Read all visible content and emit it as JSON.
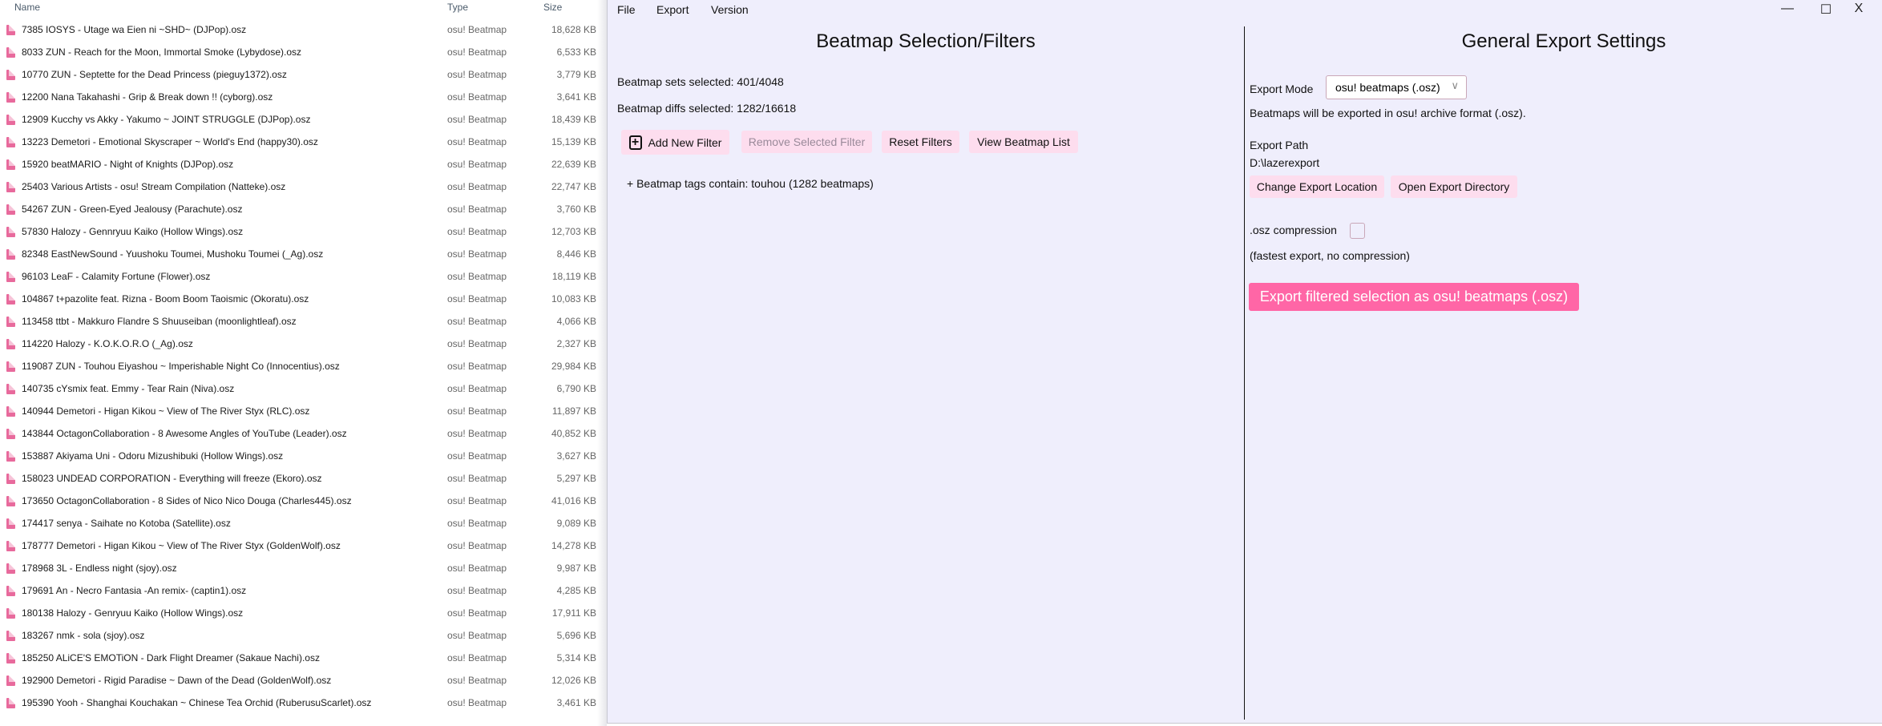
{
  "explorer": {
    "columns": {
      "name": "Name",
      "type": "Type",
      "size": "Size"
    },
    "rows": [
      {
        "name": "7385 IOSYS - Utage wa Eien ni ~SHD~ (DJPop).osz",
        "type": "osu! Beatmap",
        "size": "18,628 KB"
      },
      {
        "name": "8033 ZUN - Reach for the Moon, Immortal Smoke (Lybydose).osz",
        "type": "osu! Beatmap",
        "size": "6,533 KB"
      },
      {
        "name": "10770 ZUN - Septette for the Dead Princess (pieguy1372).osz",
        "type": "osu! Beatmap",
        "size": "3,779 KB"
      },
      {
        "name": "12200 Nana Takahashi - Grip & Break down !! (cyborg).osz",
        "type": "osu! Beatmap",
        "size": "3,641 KB"
      },
      {
        "name": "12909 Kucchy vs Akky - Yakumo ~ JOINT STRUGGLE (DJPop).osz",
        "type": "osu! Beatmap",
        "size": "18,439 KB"
      },
      {
        "name": "13223 Demetori - Emotional Skyscraper ~ World's End (happy30).osz",
        "type": "osu! Beatmap",
        "size": "15,139 KB"
      },
      {
        "name": "15920 beatMARIO - Night of Knights (DJPop).osz",
        "type": "osu! Beatmap",
        "size": "22,639 KB"
      },
      {
        "name": "25403 Various Artists - osu! Stream Compilation (Natteke).osz",
        "type": "osu! Beatmap",
        "size": "22,747 KB"
      },
      {
        "name": "54267 ZUN - Green-Eyed Jealousy (Parachute).osz",
        "type": "osu! Beatmap",
        "size": "3,760 KB"
      },
      {
        "name": "57830 Halozy - Gennryuu Kaiko (Hollow Wings).osz",
        "type": "osu! Beatmap",
        "size": "12,703 KB"
      },
      {
        "name": "82348 EastNewSound - Yuushoku Toumei, Mushoku Toumei (_Ag).osz",
        "type": "osu! Beatmap",
        "size": "8,446 KB"
      },
      {
        "name": "96103 LeaF - Calamity Fortune (Flower).osz",
        "type": "osu! Beatmap",
        "size": "18,119 KB"
      },
      {
        "name": "104867 t+pazolite feat. Rizna - Boom Boom Taoismic (Okoratu).osz",
        "type": "osu! Beatmap",
        "size": "10,083 KB"
      },
      {
        "name": "113458 ttbt - Makkuro Flandre S Shuuseiban (moonlightleaf).osz",
        "type": "osu! Beatmap",
        "size": "4,066 KB"
      },
      {
        "name": "114220 Halozy - K.O.K.O.R.O (_Ag).osz",
        "type": "osu! Beatmap",
        "size": "2,327 KB"
      },
      {
        "name": "119087 ZUN - Touhou Eiyashou ~  Imperishable Night Co (Innocentius).osz",
        "type": "osu! Beatmap",
        "size": "29,984 KB"
      },
      {
        "name": "140735 cYsmix feat. Emmy - Tear Rain (Niva).osz",
        "type": "osu! Beatmap",
        "size": "6,790 KB"
      },
      {
        "name": "140944 Demetori - Higan Kikou ~ View of The River Styx (RLC).osz",
        "type": "osu! Beatmap",
        "size": "11,897 KB"
      },
      {
        "name": "143844 OctagonCollaboration - 8 Awesome Angles of YouTube (Leader).osz",
        "type": "osu! Beatmap",
        "size": "40,852 KB"
      },
      {
        "name": "153887 Akiyama Uni - Odoru Mizushibuki (Hollow Wings).osz",
        "type": "osu! Beatmap",
        "size": "3,627 KB"
      },
      {
        "name": "158023 UNDEAD CORPORATION - Everything will freeze (Ekoro).osz",
        "type": "osu! Beatmap",
        "size": "5,297 KB"
      },
      {
        "name": "173650 OctagonCollaboration - 8 Sides of Nico Nico Douga (Charles445).osz",
        "type": "osu! Beatmap",
        "size": "41,016 KB"
      },
      {
        "name": "174417 senya - Saihate no Kotoba (Satellite).osz",
        "type": "osu! Beatmap",
        "size": "9,089 KB"
      },
      {
        "name": "178777 Demetori - Higan Kikou ~ View of The River Styx (GoldenWolf).osz",
        "type": "osu! Beatmap",
        "size": "14,278 KB"
      },
      {
        "name": "178968 3L - Endless night (sjoy).osz",
        "type": "osu! Beatmap",
        "size": "9,987 KB"
      },
      {
        "name": "179691 An - Necro Fantasia -An remix- (captin1).osz",
        "type": "osu! Beatmap",
        "size": "4,285 KB"
      },
      {
        "name": "180138 Halozy - Genryuu Kaiko (Hollow Wings).osz",
        "type": "osu! Beatmap",
        "size": "17,911 KB"
      },
      {
        "name": "183267 nmk - sola (sjoy).osz",
        "type": "osu! Beatmap",
        "size": "5,696 KB"
      },
      {
        "name": "185250 ALiCE'S EMOTiON - Dark Flight Dreamer (Sakaue Nachi).osz",
        "type": "osu! Beatmap",
        "size": "5,314 KB"
      },
      {
        "name": "192900 Demetori - Rigid Paradise ~ Dawn of the Dead (GoldenWolf).osz",
        "type": "osu! Beatmap",
        "size": "12,026 KB"
      },
      {
        "name": "195390 Yooh - Shanghai Kouchakan ~ Chinese Tea Orchid  (RuberusuScarlet).osz",
        "type": "osu! Beatmap",
        "size": "3,461 KB"
      }
    ]
  },
  "app": {
    "menu": [
      "File",
      "Export",
      "Version"
    ],
    "window_controls": {
      "minimize": "—",
      "maximize": "☐",
      "close": "X"
    },
    "left": {
      "title": "Beatmap Selection/Filters",
      "sets_selected": "Beatmap sets selected: 401/4048",
      "diffs_selected": "Beatmap diffs selected: 1282/16618",
      "buttons": {
        "add": "Add New Filter",
        "remove": "Remove Selected Filter",
        "reset": "Reset Filters",
        "view": "View Beatmap List"
      },
      "filters": [
        "+ Beatmap tags contain: touhou (1282 beatmaps)"
      ]
    },
    "right": {
      "title": "General Export Settings",
      "export_mode_label": "Export Mode",
      "export_mode_value": "osu! beatmaps (.osz)",
      "export_mode_desc": "Beatmaps will be exported in osu! archive format (.osz).",
      "export_path_label": "Export Path",
      "export_path": "D:\\lazerexport",
      "change_location": "Change Export Location",
      "open_directory": "Open Export Directory",
      "compression_label": ".osz compression",
      "compression_checked": false,
      "compression_desc": "(fastest export, no compression)",
      "export_button": "Export filtered selection as osu! beatmaps (.osz)"
    },
    "colors": {
      "accent": "#ff66a6",
      "button_bg": "#fdddee",
      "window_bg": "#efeefc"
    }
  }
}
